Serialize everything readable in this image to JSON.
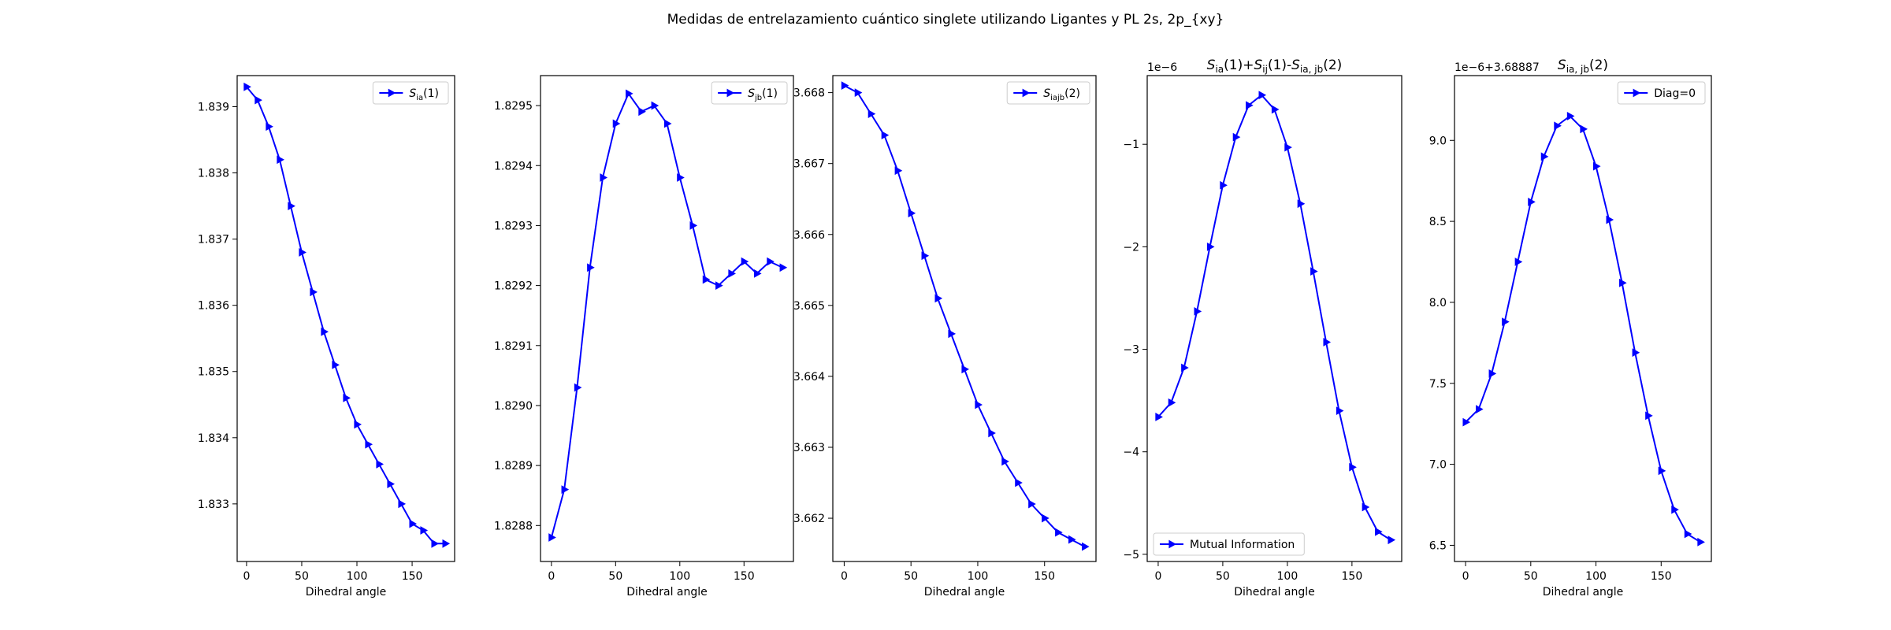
{
  "figure": {
    "suptitle": "Medidas de entrelazamiento cuántico singlete utilizando Ligantes y PL 2s, 2p_{xy}"
  },
  "chart_data": [
    {
      "type": "line",
      "title": "",
      "xlabel": "Dihedral angle",
      "ylabel": "",
      "offset_label": "",
      "xlim": [
        -8.5,
        188.5
      ],
      "ylim": [
        1.83213,
        1.83947
      ],
      "xticks": [
        0,
        50,
        100,
        150
      ],
      "yticks": [
        1.833,
        1.834,
        1.835,
        1.836,
        1.837,
        1.838,
        1.839
      ],
      "ytick_labels": [
        "1.833",
        "1.834",
        "1.835",
        "1.836",
        "1.837",
        "1.838",
        "1.839"
      ],
      "legend": {
        "location": "upper right",
        "label_main": "S",
        "label_sub": "ia",
        "label_rest": "(1)"
      },
      "series": [
        {
          "name": "Sia(1)",
          "color": "#0000ff",
          "marker": "triangle-right",
          "x": [
            0,
            10,
            20,
            30,
            40,
            50,
            60,
            70,
            80,
            90,
            100,
            110,
            120,
            130,
            140,
            150,
            160,
            170,
            180
          ],
          "y": [
            1.8393,
            1.8391,
            1.8387,
            1.8382,
            1.8375,
            1.8368,
            1.8362,
            1.8356,
            1.8351,
            1.8346,
            1.8342,
            1.8339,
            1.8336,
            1.8333,
            1.833,
            1.8327,
            1.8326,
            1.8324,
            1.8324
          ]
        }
      ]
    },
    {
      "type": "line",
      "title": "",
      "xlabel": "Dihedral angle",
      "ylabel": "",
      "offset_label": "",
      "xlim": [
        -8.5,
        188.5
      ],
      "ylim": [
        1.82874,
        1.82955
      ],
      "xticks": [
        0,
        50,
        100,
        150
      ],
      "yticks": [
        1.8288,
        1.8289,
        1.829,
        1.8291,
        1.8292,
        1.8293,
        1.8294,
        1.8295
      ],
      "ytick_labels": [
        "1.8288",
        "1.8289",
        "1.8290",
        "1.8291",
        "1.8292",
        "1.8293",
        "1.8294",
        "1.8295"
      ],
      "legend": {
        "location": "upper right",
        "label_main": "S",
        "label_sub": "jb",
        "label_rest": "(1)"
      },
      "series": [
        {
          "name": "Sjb(1)",
          "color": "#0000ff",
          "marker": "triangle-right",
          "x": [
            0,
            10,
            20,
            30,
            40,
            50,
            60,
            70,
            80,
            90,
            100,
            110,
            120,
            130,
            140,
            150,
            160,
            170,
            180
          ],
          "y": [
            1.82878,
            1.82886,
            1.82903,
            1.82923,
            1.82938,
            1.82947,
            1.82952,
            1.82949,
            1.8295,
            1.82947,
            1.82938,
            1.8293,
            1.82921,
            1.8292,
            1.82922,
            1.82924,
            1.82922,
            1.82924,
            1.82923
          ]
        }
      ]
    },
    {
      "type": "line",
      "title": "",
      "xlabel": "Dihedral angle",
      "ylabel": "",
      "offset_label": "",
      "xlim": [
        -8.5,
        188.5
      ],
      "ylim": [
        3.66139,
        3.66824
      ],
      "xticks": [
        0,
        50,
        100,
        150
      ],
      "yticks": [
        3.662,
        3.663,
        3.664,
        3.665,
        3.666,
        3.667,
        3.668
      ],
      "ytick_labels": [
        "3.662",
        "3.663",
        "3.664",
        "3.665",
        "3.666",
        "3.667",
        "3.668"
      ],
      "legend": {
        "location": "upper right",
        "label_main": "S",
        "label_sub": "iajb",
        "label_rest": "(2)"
      },
      "series": [
        {
          "name": "Siajb(2)",
          "color": "#0000ff",
          "marker": "triangle-right",
          "x": [
            0,
            10,
            20,
            30,
            40,
            50,
            60,
            70,
            80,
            90,
            100,
            110,
            120,
            130,
            140,
            150,
            160,
            170,
            180
          ],
          "y": [
            3.6681,
            3.668,
            3.6677,
            3.6674,
            3.6669,
            3.6663,
            3.6657,
            3.6651,
            3.6646,
            3.6641,
            3.6636,
            3.6632,
            3.6628,
            3.6625,
            3.6622,
            3.662,
            3.6618,
            3.6617,
            3.6616
          ]
        }
      ]
    },
    {
      "type": "line",
      "title": "S_ia(1)+S_ij(1)-S_ia,jb(2)",
      "title_rich": [
        {
          "text": "S",
          "style": "italic"
        },
        {
          "text": "ia",
          "style": "sub"
        },
        {
          "text": "(1)+",
          "style": "normal"
        },
        {
          "text": "S",
          "style": "italic"
        },
        {
          "text": "ij",
          "style": "sub"
        },
        {
          "text": "(1)-",
          "style": "normal"
        },
        {
          "text": "S",
          "style": "italic"
        },
        {
          "text": "ia, jb",
          "style": "sub"
        },
        {
          "text": "(2)",
          "style": "normal"
        }
      ],
      "xlabel": "Dihedral angle",
      "ylabel": "",
      "offset_label": "1e−6",
      "xlim": [
        -8.5,
        188.5
      ],
      "ylim": [
        -5.07e-06,
        -3.3e-07
      ],
      "xticks": [
        0,
        50,
        100,
        150
      ],
      "yticks": [
        -5e-06,
        -4e-06,
        -3e-06,
        -2e-06,
        -1e-06
      ],
      "ytick_labels": [
        "−5",
        "−4",
        "−3",
        "−2",
        "−1"
      ],
      "legend": {
        "location": "lower left",
        "label_main": "Mutual Information",
        "label_sub": "",
        "label_rest": ""
      },
      "series": [
        {
          "name": "Mutual Information",
          "color": "#0000ff",
          "marker": "triangle-right",
          "x": [
            0,
            10,
            20,
            30,
            40,
            50,
            60,
            70,
            80,
            90,
            100,
            110,
            120,
            130,
            140,
            150,
            160,
            170,
            180
          ],
          "y": [
            -3.66e-06,
            -3.52e-06,
            -3.18e-06,
            -2.63e-06,
            -2e-06,
            -1.4e-06,
            -9.3e-07,
            -6.2e-07,
            -5.2e-07,
            -6.6e-07,
            -1.03e-06,
            -1.58e-06,
            -2.24e-06,
            -2.93e-06,
            -3.6e-06,
            -4.15e-06,
            -4.54e-06,
            -4.78e-06,
            -4.86e-06
          ]
        }
      ]
    },
    {
      "type": "line",
      "title": "S_ia,jb(2)",
      "title_rich": [
        {
          "text": "S",
          "style": "italic"
        },
        {
          "text": "ia, jb",
          "style": "sub"
        },
        {
          "text": "(2)",
          "style": "normal"
        }
      ],
      "xlabel": "Dihedral angle",
      "ylabel": "",
      "offset_label": "1e−6+3.68887",
      "xlim": [
        -8.5,
        188.5
      ],
      "ylim": [
        6.4,
        9.4
      ],
      "xticks": [
        0,
        50,
        100,
        150
      ],
      "yticks": [
        6.5,
        7.0,
        7.5,
        8.0,
        8.5,
        9.0
      ],
      "ytick_labels": [
        "6.5",
        "7.0",
        "7.5",
        "8.0",
        "8.5",
        "9.0"
      ],
      "legend": {
        "location": "upper right",
        "label_main": "Diag=0",
        "label_sub": "",
        "label_rest": ""
      },
      "series": [
        {
          "name": "Diag=0",
          "color": "#0000ff",
          "marker": "triangle-right",
          "x": [
            0,
            10,
            20,
            30,
            40,
            50,
            60,
            70,
            80,
            90,
            100,
            110,
            120,
            130,
            140,
            150,
            160,
            170,
            180
          ],
          "y": [
            7.26,
            7.34,
            7.56,
            7.88,
            8.25,
            8.62,
            8.9,
            9.09,
            9.15,
            9.07,
            8.84,
            8.51,
            8.12,
            7.69,
            7.3,
            6.96,
            6.72,
            6.57,
            6.52
          ]
        }
      ]
    }
  ]
}
